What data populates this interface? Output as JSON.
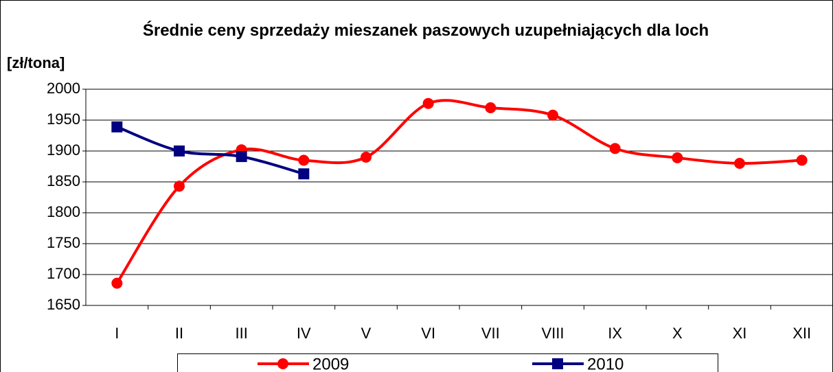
{
  "chart_data": {
    "type": "line",
    "title": "Średnie ceny sprzedaży mieszanek paszowych uzupełniających dla loch",
    "y_label": "[zł/tona]",
    "categories": [
      "I",
      "II",
      "III",
      "IV",
      "V",
      "VI",
      "VII",
      "VIII",
      "IX",
      "X",
      "XI",
      "XII"
    ],
    "series": [
      {
        "name": "2009",
        "color": "#ff0000",
        "marker": "circle",
        "values": [
          1686,
          1843,
          1902,
          1885,
          1890,
          1977,
          1970,
          1958,
          1904,
          1889,
          1880,
          1885
        ]
      },
      {
        "name": "2010",
        "color": "#000080",
        "marker": "square",
        "values": [
          1939,
          1900,
          1891,
          1863,
          null,
          null,
          null,
          null,
          null,
          null,
          null,
          null
        ]
      }
    ],
    "ylim": [
      1650,
      2000
    ],
    "yticks": [
      1650,
      1700,
      1750,
      1800,
      1850,
      1900,
      1950,
      2000
    ],
    "grid": true,
    "smooth": true
  }
}
